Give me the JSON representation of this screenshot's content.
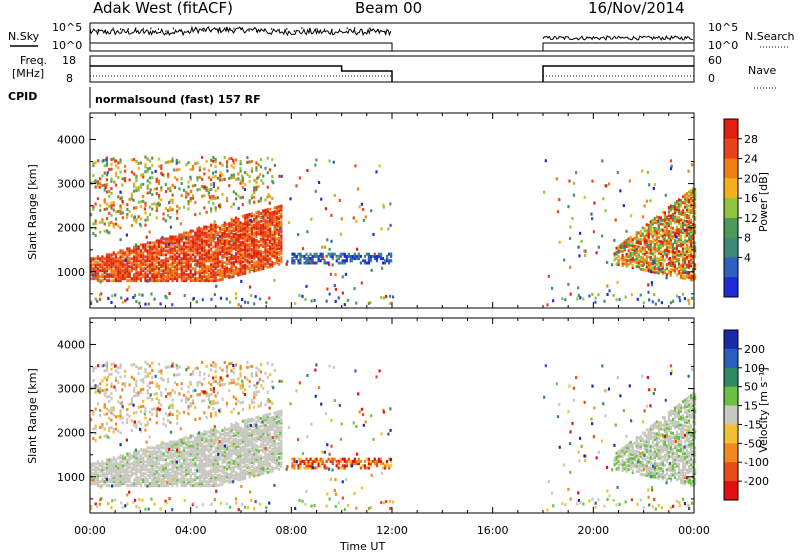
{
  "header": {
    "station": "Adak West (fitACF)",
    "beam": "Beam 00",
    "date": "16/Nov/2014"
  },
  "side_labels": {
    "nsky": "N.Sky",
    "nsearch": "N.Search",
    "freq_line1": "Freq.",
    "freq_line2": "[MHz]",
    "nave": "Nave",
    "cpid": "CPID",
    "cpid_value": "normalsound (fast) 157 RF"
  },
  "noise_axis": {
    "left": [
      "10^5",
      "10^0"
    ],
    "right": [
      "10^5",
      "10^0"
    ]
  },
  "freq_axis": {
    "left": [
      "18",
      "8"
    ],
    "right": [
      "60",
      "0"
    ]
  },
  "colors": {
    "sky_line": "#000000",
    "search_dots": "#000000",
    "gap_start": "12:00",
    "gap_end": "18:00"
  },
  "chart_data": [
    {
      "type": "heatmap",
      "panel": "power",
      "ylabel": "Slant Range [km]",
      "xlabel": "Time UT",
      "y_ticks": [
        "1000",
        "2000",
        "3000",
        "4000"
      ],
      "x_ticks": [
        "00:00",
        "04:00",
        "08:00",
        "12:00",
        "16:00",
        "20:00",
        "00:00"
      ],
      "xlim_hours": [
        0,
        24
      ],
      "ylim_km": [
        180,
        4600
      ],
      "colorbar": {
        "label": "Power [dB]",
        "ticks": [
          "4",
          "8",
          "12",
          "16",
          "20",
          "24",
          "28"
        ],
        "range": [
          0,
          30
        ],
        "colors": [
          "#1f2bd6",
          "#2f5fbf",
          "#3c8a7a",
          "#4a9b5a",
          "#8fc440",
          "#f2b01e",
          "#f07d12",
          "#e8431a",
          "#e01f10"
        ]
      },
      "data_gap_hours": [
        12,
        18
      ],
      "features": [
        {
          "name": "main band",
          "hours": [
            0,
            7.5
          ],
          "range_km": [
            800,
            2600
          ],
          "power_db": "20-30"
        },
        {
          "name": "upper scatter",
          "hours": [
            0,
            7
          ],
          "range_km": [
            2000,
            3600
          ],
          "power_db": "12-26"
        },
        {
          "name": "mid-range echoes",
          "hours": [
            8,
            12
          ],
          "range_km": [
            1200,
            1450
          ],
          "power_db": "4-12"
        },
        {
          "name": "evening band",
          "hours": [
            21,
            24
          ],
          "range_km": [
            800,
            3000
          ],
          "power_db": "12-30"
        }
      ]
    },
    {
      "type": "heatmap",
      "panel": "velocity",
      "ylabel": "Slant Range [km]",
      "xlabel": "Time UT",
      "y_ticks": [
        "1000",
        "2000",
        "3000",
        "4000"
      ],
      "x_ticks": [
        "00:00",
        "04:00",
        "08:00",
        "12:00",
        "16:00",
        "20:00",
        "00:00"
      ],
      "xlim_hours": [
        0,
        24
      ],
      "ylim_km": [
        180,
        4600
      ],
      "colorbar": {
        "label": "Velocity [m s⁻¹]",
        "ticks": [
          "200",
          "100",
          "50",
          "15",
          "-15",
          "-50",
          "-100",
          "-200"
        ],
        "range": [
          -250,
          250
        ],
        "colors": [
          "#1a2aa8",
          "#2a5fc0",
          "#2f8a64",
          "#6ac040",
          "#c8c8c0",
          "#f0c030",
          "#f08a20",
          "#e84a18",
          "#e01010"
        ]
      },
      "data_gap_hours": [
        12,
        18
      ],
      "features": [
        {
          "name": "ground scatter band",
          "hours": [
            0,
            7.5
          ],
          "range_km": [
            800,
            2600
          ],
          "velocity": "-15 to 15"
        },
        {
          "name": "mid-range echoes",
          "hours": [
            8,
            12
          ],
          "range_km": [
            1200,
            1450
          ],
          "velocity": "-200 to -50"
        },
        {
          "name": "evening band",
          "hours": [
            21,
            24
          ],
          "range_km": [
            800,
            3000
          ],
          "velocity": "-15 to 50"
        }
      ]
    }
  ]
}
